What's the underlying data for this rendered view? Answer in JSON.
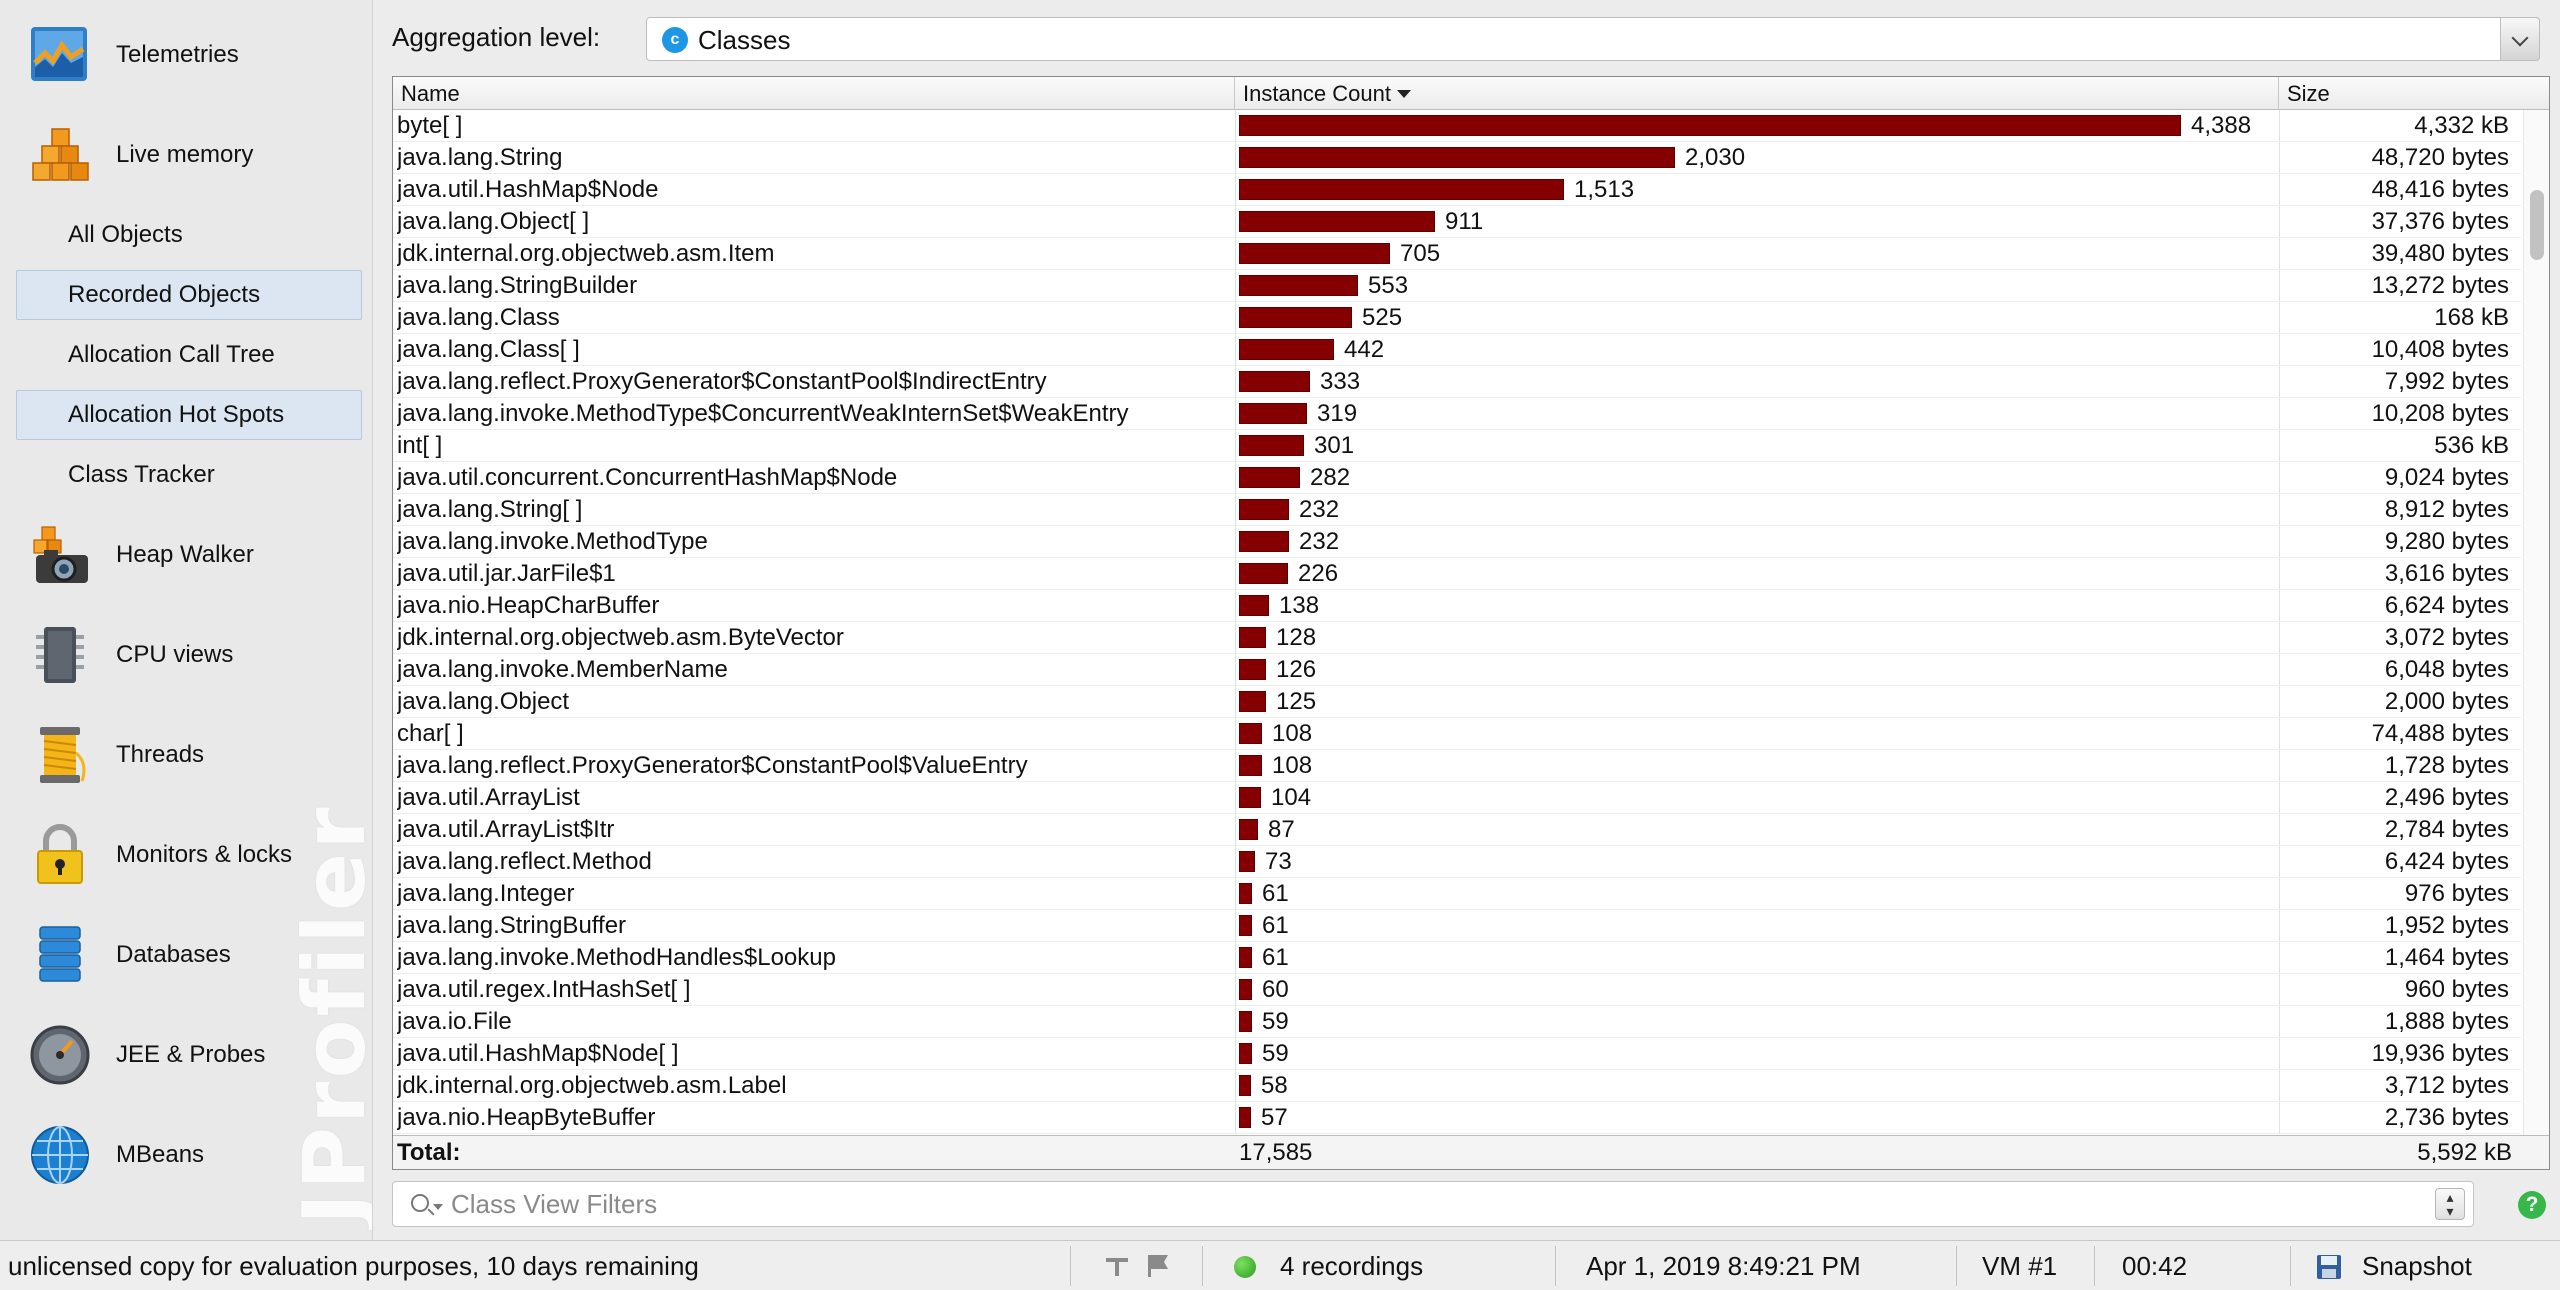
{
  "sidebar": {
    "watermark": "JProfiler",
    "main_items": [
      {
        "label": "Telemetries",
        "icon": "telemetries-icon"
      },
      {
        "label": "Live memory",
        "icon": "live-memory-icon"
      },
      {
        "label": "Heap Walker",
        "icon": "heap-walker-icon"
      },
      {
        "label": "CPU views",
        "icon": "cpu-views-icon"
      },
      {
        "label": "Threads",
        "icon": "threads-icon"
      },
      {
        "label": "Monitors & locks",
        "icon": "lock-icon"
      },
      {
        "label": "Databases",
        "icon": "databases-icon"
      },
      {
        "label": "JEE & Probes",
        "icon": "gauge-icon"
      },
      {
        "label": "MBeans",
        "icon": "globe-icon"
      }
    ],
    "live_memory_sub": [
      {
        "label": "All Objects",
        "selected": false
      },
      {
        "label": "Recorded Objects",
        "selected": true
      },
      {
        "label": "Allocation Call Tree",
        "selected": false
      },
      {
        "label": "Allocation Hot Spots",
        "selected": true
      },
      {
        "label": "Class Tracker",
        "selected": false
      }
    ]
  },
  "aggregation": {
    "label": "Aggregation level:",
    "value": "Classes",
    "value_icon": "c",
    "accent_color": "#1e96e6"
  },
  "table": {
    "columns": {
      "name": "Name",
      "count": "Instance Count",
      "size": "Size"
    },
    "sorted_by": "Instance Count",
    "bar_color": "#850000",
    "max_count": 4388,
    "rows": [
      {
        "name": "byte[ ]",
        "count": 4388,
        "count_label": "4,388",
        "size": "4,332 kB"
      },
      {
        "name": "java.lang.String",
        "count": 2030,
        "count_label": "2,030",
        "size": "48,720 bytes"
      },
      {
        "name": "java.util.HashMap$Node",
        "count": 1513,
        "count_label": "1,513",
        "size": "48,416 bytes"
      },
      {
        "name": "java.lang.Object[ ]",
        "count": 911,
        "count_label": "911",
        "size": "37,376 bytes"
      },
      {
        "name": "jdk.internal.org.objectweb.asm.Item",
        "count": 705,
        "count_label": "705",
        "size": "39,480 bytes"
      },
      {
        "name": "java.lang.StringBuilder",
        "count": 553,
        "count_label": "553",
        "size": "13,272 bytes"
      },
      {
        "name": "java.lang.Class",
        "count": 525,
        "count_label": "525",
        "size": "168 kB"
      },
      {
        "name": "java.lang.Class[ ]",
        "count": 442,
        "count_label": "442",
        "size": "10,408 bytes"
      },
      {
        "name": "java.lang.reflect.ProxyGenerator$ConstantPool$IndirectEntry",
        "count": 333,
        "count_label": "333",
        "size": "7,992 bytes"
      },
      {
        "name": "java.lang.invoke.MethodType$ConcurrentWeakInternSet$WeakEntry",
        "count": 319,
        "count_label": "319",
        "size": "10,208 bytes"
      },
      {
        "name": "int[ ]",
        "count": 301,
        "count_label": "301",
        "size": "536 kB"
      },
      {
        "name": "java.util.concurrent.ConcurrentHashMap$Node",
        "count": 282,
        "count_label": "282",
        "size": "9,024 bytes"
      },
      {
        "name": "java.lang.String[ ]",
        "count": 232,
        "count_label": "232",
        "size": "8,912 bytes"
      },
      {
        "name": "java.lang.invoke.MethodType",
        "count": 232,
        "count_label": "232",
        "size": "9,280 bytes"
      },
      {
        "name": "java.util.jar.JarFile$1",
        "count": 226,
        "count_label": "226",
        "size": "3,616 bytes"
      },
      {
        "name": "java.nio.HeapCharBuffer",
        "count": 138,
        "count_label": "138",
        "size": "6,624 bytes"
      },
      {
        "name": "jdk.internal.org.objectweb.asm.ByteVector",
        "count": 128,
        "count_label": "128",
        "size": "3,072 bytes"
      },
      {
        "name": "java.lang.invoke.MemberName",
        "count": 126,
        "count_label": "126",
        "size": "6,048 bytes"
      },
      {
        "name": "java.lang.Object",
        "count": 125,
        "count_label": "125",
        "size": "2,000 bytes"
      },
      {
        "name": "char[ ]",
        "count": 108,
        "count_label": "108",
        "size": "74,488 bytes"
      },
      {
        "name": "java.lang.reflect.ProxyGenerator$ConstantPool$ValueEntry",
        "count": 108,
        "count_label": "108",
        "size": "1,728 bytes"
      },
      {
        "name": "java.util.ArrayList",
        "count": 104,
        "count_label": "104",
        "size": "2,496 bytes"
      },
      {
        "name": "java.util.ArrayList$Itr",
        "count": 87,
        "count_label": "87",
        "size": "2,784 bytes"
      },
      {
        "name": "java.lang.reflect.Method",
        "count": 73,
        "count_label": "73",
        "size": "6,424 bytes"
      },
      {
        "name": "java.lang.Integer",
        "count": 61,
        "count_label": "61",
        "size": "976 bytes"
      },
      {
        "name": "java.lang.StringBuffer",
        "count": 61,
        "count_label": "61",
        "size": "1,952 bytes"
      },
      {
        "name": "java.lang.invoke.MethodHandles$Lookup",
        "count": 61,
        "count_label": "61",
        "size": "1,464 bytes"
      },
      {
        "name": "java.util.regex.IntHashSet[ ]",
        "count": 60,
        "count_label": "60",
        "size": "960 bytes"
      },
      {
        "name": "java.io.File",
        "count": 59,
        "count_label": "59",
        "size": "1,888 bytes"
      },
      {
        "name": "java.util.HashMap$Node[ ]",
        "count": 59,
        "count_label": "59",
        "size": "19,936 bytes"
      },
      {
        "name": "jdk.internal.org.objectweb.asm.Label",
        "count": 58,
        "count_label": "58",
        "size": "3,712 bytes"
      },
      {
        "name": "java.nio.HeapByteBuffer",
        "count": 57,
        "count_label": "57",
        "size": "2,736 bytes"
      }
    ],
    "total": {
      "label": "Total:",
      "count": "17,585",
      "size": "5,592 kB"
    }
  },
  "filter": {
    "placeholder": "Class View Filters",
    "value": ""
  },
  "statusbar": {
    "license": "unlicensed copy for evaluation purposes, 10 days remaining",
    "recordings": "4 recordings",
    "recording_status_color": "#3cb02a",
    "datetime": "Apr 1, 2019 8:49:21 PM",
    "vm": "VM #1",
    "elapsed": "00:42",
    "snapshot": "Snapshot"
  }
}
